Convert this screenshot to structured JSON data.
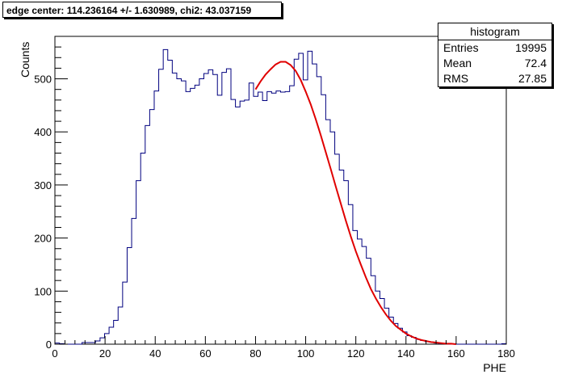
{
  "title_text": "edge center: 114.236164 +/- 1.630989, chi2: 43.037159",
  "stats": {
    "header": "histogram",
    "rows": [
      {
        "label": "Entries",
        "value": "19995"
      },
      {
        "label": "Mean",
        "value": "72.4"
      },
      {
        "label": "RMS",
        "value": "27.85"
      }
    ]
  },
  "colors": {
    "histogram": "#00007f",
    "fit": "#e00000",
    "axes": "#000000"
  },
  "chart_data": {
    "type": "line",
    "xlabel": "PHE",
    "ylabel": "Counts",
    "xlim": [
      0,
      180
    ],
    "ylim": [
      0,
      580
    ],
    "x_ticks": [
      0,
      20,
      40,
      60,
      80,
      100,
      120,
      140,
      160,
      180
    ],
    "y_ticks": [
      0,
      100,
      200,
      300,
      400,
      500
    ],
    "grid": false,
    "series": [
      {
        "kind": "histogram-step",
        "bin_width": 1.8,
        "x_start": 0,
        "values": [
          2,
          1,
          0,
          0,
          0,
          0,
          3,
          3,
          3,
          6,
          12,
          20,
          32,
          45,
          70,
          117,
          182,
          237,
          308,
          360,
          412,
          442,
          477,
          518,
          555,
          535,
          511,
          500,
          496,
          476,
          482,
          488,
          500,
          510,
          517,
          508,
          469,
          512,
          519,
          461,
          447,
          458,
          460,
          492,
          467,
          475,
          459,
          476,
          473,
          477,
          475,
          476,
          487,
          537,
          548,
          498,
          552,
          528,
          504,
          470,
          423,
          400,
          358,
          328,
          308,
          263,
          214,
          198,
          184,
          162,
          129,
          100,
          86,
          68,
          51,
          39,
          30,
          23,
          16,
          13,
          9,
          7,
          5,
          4,
          2,
          1,
          1,
          0,
          0,
          0,
          0,
          0,
          0,
          0,
          0,
          0,
          0,
          0,
          0,
          1
        ]
      },
      {
        "kind": "fit-curve",
        "name": "",
        "x": [
          80,
          82,
          84,
          86,
          88,
          90,
          92,
          94,
          96,
          98,
          100,
          102,
          104,
          106,
          108,
          110,
          112,
          114,
          116,
          118,
          120,
          122,
          124,
          126,
          128,
          130,
          132,
          134,
          136,
          138,
          140,
          142,
          144,
          146,
          148,
          150,
          152,
          154,
          156,
          158,
          160
        ],
        "y": [
          480,
          495,
          508,
          518,
          527,
          532,
          532,
          526,
          515,
          498,
          476,
          452,
          424,
          394,
          362,
          330,
          297,
          265,
          233,
          203,
          175,
          150,
          126,
          104,
          86,
          70,
          56,
          44,
          34,
          27,
          20,
          15,
          11,
          8,
          6,
          4,
          3,
          2,
          1,
          1,
          0
        ]
      }
    ]
  }
}
